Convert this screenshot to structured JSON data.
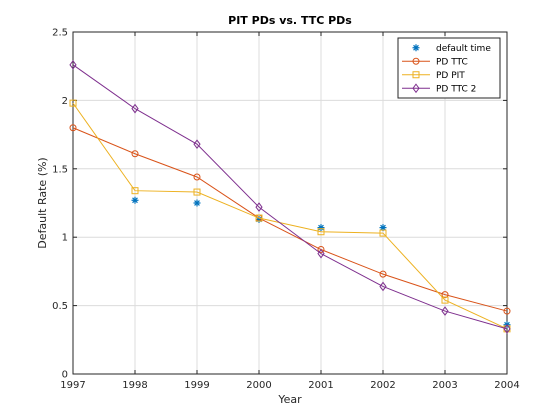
{
  "chart_data": {
    "type": "line",
    "title": "PIT PDs vs. TTC PDs",
    "xlabel": "Year",
    "ylabel": "Default Rate (%)",
    "xlim": [
      1997,
      2004
    ],
    "ylim": [
      0,
      2.5
    ],
    "x_ticks": [
      1997,
      1998,
      1999,
      2000,
      2001,
      2002,
      2003,
      2004
    ],
    "y_ticks": [
      0,
      0.5,
      1,
      1.5,
      2,
      2.5
    ],
    "y_tick_labels": [
      "0",
      "0.5",
      "1",
      "1.5",
      "2",
      "2.5"
    ],
    "grid": true,
    "legend_position": "top-right",
    "series": [
      {
        "name": "default time",
        "style": "markers-only",
        "marker": "asterisk",
        "color": "#0072BD",
        "x": [
          1998,
          1999,
          2000,
          2001,
          2002,
          2004
        ],
        "values": [
          1.27,
          1.25,
          1.13,
          1.07,
          1.07,
          0.36
        ]
      },
      {
        "name": "PD TTC",
        "style": "line",
        "marker": "circle",
        "color": "#D95319",
        "x": [
          1997,
          1998,
          1999,
          2000,
          2001,
          2002,
          2003,
          2004
        ],
        "values": [
          1.8,
          1.61,
          1.44,
          1.14,
          0.91,
          0.73,
          0.58,
          0.46
        ]
      },
      {
        "name": "PD PIT",
        "style": "line",
        "marker": "square",
        "color": "#EDB120",
        "x": [
          1997,
          1998,
          1999,
          2000,
          2001,
          2002,
          2003,
          2004
        ],
        "values": [
          1.98,
          1.34,
          1.33,
          1.14,
          1.04,
          1.03,
          0.54,
          0.33
        ]
      },
      {
        "name": "PD TTC 2",
        "style": "line",
        "marker": "diamond",
        "color": "#7E2F8E",
        "x": [
          1997,
          1998,
          1999,
          2000,
          2001,
          2002,
          2003,
          2004
        ],
        "values": [
          2.26,
          1.94,
          1.68,
          1.22,
          0.88,
          0.64,
          0.46,
          0.33
        ]
      }
    ]
  }
}
